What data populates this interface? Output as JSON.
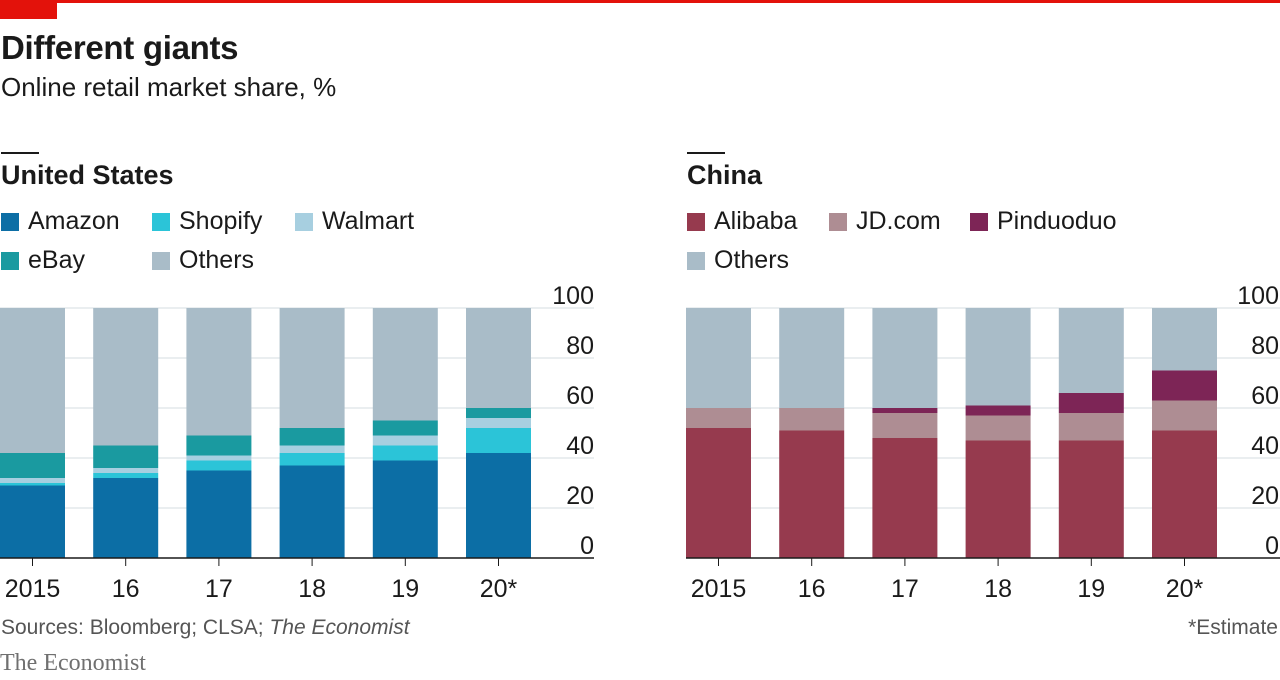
{
  "header": {
    "title": "Different giants",
    "subtitle": "Online retail market share, %",
    "accent_color": "#e3120b"
  },
  "footer": {
    "sources_prefix": "Sources: Bloomberg; CLSA; ",
    "sources_italic": "The Economist",
    "note": "*Estimate",
    "brand": "The Economist"
  },
  "chart_data": [
    {
      "type": "bar",
      "stacked": true,
      "title": "United States",
      "categories": [
        "2015",
        "16",
        "17",
        "18",
        "19",
        "20*"
      ],
      "ylim": [
        0,
        100
      ],
      "yticks": [
        0,
        20,
        40,
        60,
        80,
        100
      ],
      "y_axis_position": "right",
      "grid": true,
      "legend_placement": "top-left",
      "series": [
        {
          "name": "Amazon",
          "color": "#0c6ea5",
          "values": [
            29,
            32,
            35,
            37,
            39,
            42
          ]
        },
        {
          "name": "Shopify",
          "color": "#2bc4d8",
          "values": [
            1,
            2,
            4,
            5,
            6,
            10
          ]
        },
        {
          "name": "Walmart",
          "color": "#a7cfe0",
          "values": [
            2,
            2,
            2,
            3,
            4,
            4
          ]
        },
        {
          "name": "eBay",
          "color": "#1a9aa0",
          "values": [
            10,
            9,
            8,
            7,
            6,
            4
          ]
        },
        {
          "name": "Others",
          "color": "#a9bcc8",
          "values": [
            58,
            55,
            51,
            48,
            45,
            40
          ]
        }
      ],
      "legend_order": [
        "Amazon",
        "Shopify",
        "Walmart",
        "eBay",
        "Others"
      ]
    },
    {
      "type": "bar",
      "stacked": true,
      "title": "China",
      "categories": [
        "2015",
        "16",
        "17",
        "18",
        "19",
        "20*"
      ],
      "ylim": [
        0,
        100
      ],
      "yticks": [
        0,
        20,
        40,
        60,
        80,
        100
      ],
      "y_axis_position": "right",
      "grid": true,
      "legend_placement": "top-left",
      "series": [
        {
          "name": "Alibaba",
          "color": "#963a4e",
          "values": [
            52,
            51,
            48,
            47,
            47,
            51
          ]
        },
        {
          "name": "JD.com",
          "color": "#ae8d93",
          "values": [
            8,
            9,
            10,
            10,
            11,
            12
          ]
        },
        {
          "name": "Pinduoduo",
          "color": "#7d2556",
          "values": [
            0,
            0,
            2,
            4,
            8,
            12
          ]
        },
        {
          "name": "Others",
          "color": "#a9bcc8",
          "values": [
            40,
            40,
            40,
            39,
            34,
            25
          ]
        }
      ],
      "legend_order": [
        "Alibaba",
        "JD.com",
        "Pinduoduo",
        "Others"
      ]
    }
  ]
}
